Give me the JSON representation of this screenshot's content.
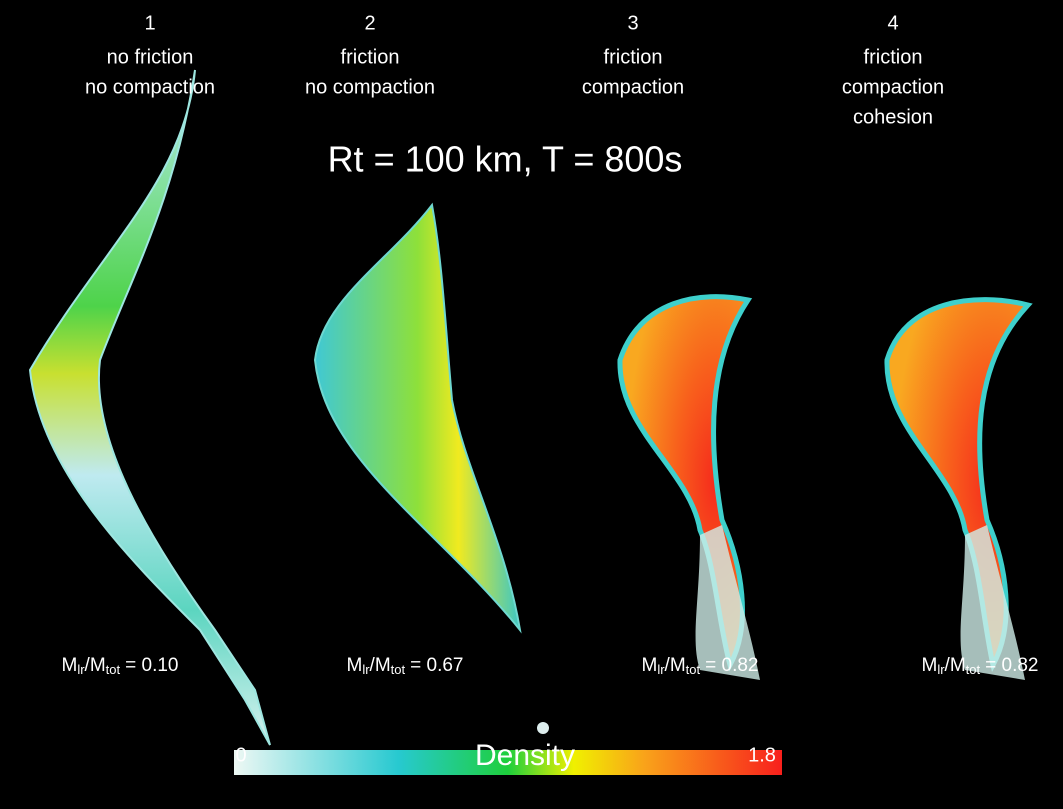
{
  "title": "Rt = 100 km, T = 800s",
  "panels": [
    {
      "number": "1",
      "lines": [
        "no friction",
        "no compaction"
      ],
      "ratio": {
        "m1": "M",
        "sub1": "lr",
        "m2": "/M",
        "sub2": "tot",
        "rest": "= 0.10"
      }
    },
    {
      "number": "2",
      "lines": [
        "friction",
        "no compaction"
      ],
      "ratio": {
        "m1": "M",
        "sub1": "lr",
        "m2": "/M",
        "sub2": "tot",
        "rest": "= 0.67"
      }
    },
    {
      "number": "3",
      "lines": [
        "friction",
        "compaction"
      ],
      "ratio": {
        "m1": "M",
        "sub1": "lr",
        "m2": "/M",
        "sub2": "tot",
        "rest": "= 0.82"
      }
    },
    {
      "number": "4",
      "lines": [
        "friction",
        "compaction",
        "cohesion"
      ],
      "ratio": {
        "m1": "M",
        "sub1": "lr",
        "m2": "/M",
        "sub2": "tot",
        "rest": "= 0.82"
      }
    }
  ],
  "colorbar": {
    "label": "Density",
    "min": 0,
    "max": 1.8
  }
}
